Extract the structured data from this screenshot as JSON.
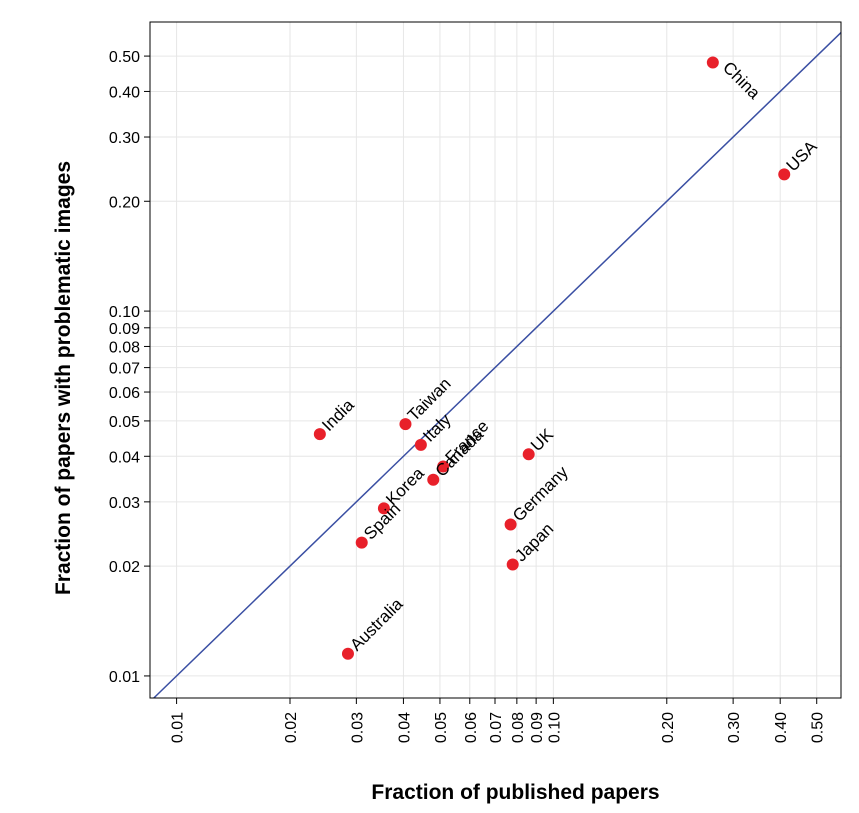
{
  "chart_data": {
    "type": "scatter",
    "xlabel": "Fraction of published papers",
    "ylabel": "Fraction of papers with problematic images",
    "x_scale": "log",
    "y_scale": "log",
    "xlim": [
      0.0085,
      0.58
    ],
    "ylim": [
      0.0087,
      0.62
    ],
    "x_ticks": [
      0.01,
      0.02,
      0.03,
      0.04,
      0.05,
      0.06,
      0.07,
      0.08,
      0.09,
      0.1,
      0.2,
      0.3,
      0.4,
      0.5
    ],
    "x_tick_labels": [
      "0.01",
      "0.02",
      "0.03",
      "0.04",
      "0.05",
      "0.06",
      "0.07",
      "0.08",
      "0.09",
      "0.10",
      "0.20",
      "0.30",
      "0.40",
      "0.50"
    ],
    "y_ticks": [
      0.01,
      0.02,
      0.03,
      0.04,
      0.05,
      0.06,
      0.07,
      0.08,
      0.09,
      0.1,
      0.2,
      0.3,
      0.4,
      0.5
    ],
    "y_tick_labels": [
      "0.01",
      "0.02",
      "0.03",
      "0.04",
      "0.05",
      "0.06",
      "0.07",
      "0.08",
      "0.09",
      "0.10",
      "0.20",
      "0.30",
      "0.40",
      "0.50"
    ],
    "grid": true,
    "reference_line": "y = x",
    "point_color": "#e8202a",
    "line_color": "#3a4fa3",
    "points": [
      {
        "label": "China",
        "x": 0.265,
        "y": 0.48
      },
      {
        "label": "USA",
        "x": 0.41,
        "y": 0.237
      },
      {
        "label": "India",
        "x": 0.024,
        "y": 0.046
      },
      {
        "label": "Taiwan",
        "x": 0.0405,
        "y": 0.049
      },
      {
        "label": "Italy",
        "x": 0.0445,
        "y": 0.043
      },
      {
        "label": "France",
        "x": 0.051,
        "y": 0.0375
      },
      {
        "label": "Canada",
        "x": 0.048,
        "y": 0.0345
      },
      {
        "label": "UK",
        "x": 0.086,
        "y": 0.0405
      },
      {
        "label": "Korea",
        "x": 0.0355,
        "y": 0.0288
      },
      {
        "label": "Spain",
        "x": 0.031,
        "y": 0.0232
      },
      {
        "label": "Germany",
        "x": 0.077,
        "y": 0.026
      },
      {
        "label": "Japan",
        "x": 0.078,
        "y": 0.0202
      },
      {
        "label": "Australia",
        "x": 0.0285,
        "y": 0.0115
      }
    ]
  }
}
